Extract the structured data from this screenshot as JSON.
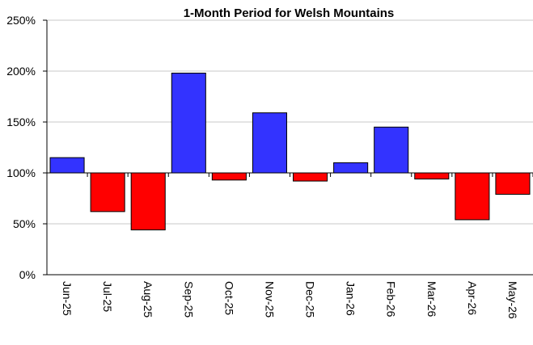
{
  "chart_data": {
    "type": "bar",
    "title": "1-Month Period for Welsh Mountains",
    "xlabel": "",
    "ylabel": "",
    "baseline": 100,
    "ylim": [
      0,
      250
    ],
    "yticks": [
      0,
      50,
      100,
      150,
      200,
      250
    ],
    "ytick_labels": [
      "0%",
      "50%",
      "100%",
      "150%",
      "200%",
      "250%"
    ],
    "categories": [
      "Jun-25",
      "Jul-25",
      "Aug-25",
      "Sep-25",
      "Oct-25",
      "Nov-25",
      "Dec-25",
      "Jan-26",
      "Feb-26",
      "Mar-26",
      "Apr-26",
      "May-26"
    ],
    "values": [
      115,
      62,
      44,
      198,
      93,
      159,
      92,
      110,
      145,
      94,
      54,
      79
    ],
    "grid": true,
    "colors": {
      "above": "#3333ff",
      "below": "#ff0000",
      "outline": "#000000",
      "grid": "#c8c8c8"
    }
  }
}
